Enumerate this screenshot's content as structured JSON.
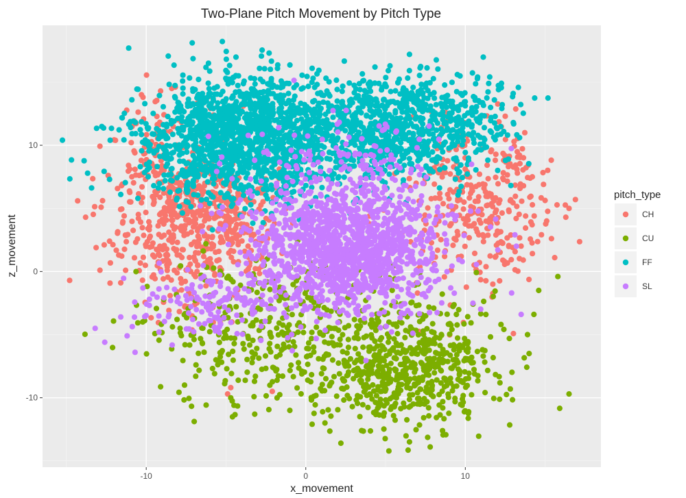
{
  "chart_data": {
    "type": "scatter",
    "title": "Two-Plane Pitch Movement by Pitch Type",
    "xlabel": "x_movement",
    "ylabel": "z_movement",
    "xlim": [
      -16.5,
      18.5
    ],
    "ylim": [
      -15.5,
      19.5
    ],
    "xticks": [
      -10,
      0,
      10
    ],
    "yticks": [
      -10,
      0,
      10
    ],
    "grid": true,
    "legend": {
      "title": "pitch_type",
      "placement": "right"
    },
    "series": [
      {
        "name": "CH",
        "color": "#f8766d",
        "clusters": [
          {
            "cx": -7.0,
            "cy": 4.0,
            "sx": 2.4,
            "sy": 3.0,
            "n": 650
          },
          {
            "cx": 10.8,
            "cy": 5.0,
            "sx": 2.2,
            "sy": 3.2,
            "n": 340
          },
          {
            "cx": -9.5,
            "cy": 10.0,
            "sx": 1.2,
            "sy": 2.5,
            "n": 60
          }
        ],
        "values": [
          [
            -14.8,
            -0.7
          ],
          [
            -14.3,
            5.6
          ],
          [
            -13.8,
            4.3
          ],
          [
            -12.9,
            0.1
          ],
          [
            -12.3,
            2.4
          ],
          [
            -11.6,
            -0.9
          ],
          [
            -10.9,
            7.5
          ],
          [
            -10.2,
            13.8
          ],
          [
            -9.1,
            14.3
          ],
          [
            -8.4,
            14.5
          ],
          [
            -4.9,
            -9.7
          ],
          [
            -4.7,
            -9.2
          ],
          [
            -2.1,
            -9.5
          ],
          [
            14.9,
            6.9
          ],
          [
            15.1,
            4.0
          ],
          [
            15.4,
            2.6
          ],
          [
            15.6,
            1.1
          ],
          [
            16.3,
            4.3
          ],
          [
            16.9,
            5.7
          ],
          [
            16.5,
            5.0
          ],
          [
            14.2,
            7.5
          ],
          [
            12.5,
            12.3
          ]
        ]
      },
      {
        "name": "CU",
        "color": "#7cae00",
        "clusters": [
          {
            "cx": 6.2,
            "cy": -7.5,
            "sx": 2.8,
            "sy": 2.6,
            "n": 650
          },
          {
            "cx": -2.5,
            "cy": -4.6,
            "sx": 3.5,
            "sy": 2.8,
            "n": 330
          }
        ],
        "values": [
          [
            16.5,
            -9.7
          ],
          [
            15.8,
            -0.4
          ],
          [
            14.6,
            -1.5
          ],
          [
            14.3,
            -3.4
          ],
          [
            13.9,
            -5.0
          ],
          [
            0.4,
            -12.1
          ],
          [
            1.2,
            -12.0
          ],
          [
            2.2,
            -13.6
          ],
          [
            6.5,
            -13.5
          ],
          [
            7.8,
            -13.9
          ],
          [
            -4.5,
            -10.6
          ],
          [
            -3.2,
            -11.3
          ],
          [
            -1.0,
            -11.0
          ],
          [
            3.5,
            -12.6
          ],
          [
            9.8,
            -10.6
          ],
          [
            14.0,
            -6.5
          ],
          [
            -7.6,
            -9.0
          ],
          [
            -6.9,
            -8.3
          ]
        ]
      },
      {
        "name": "FF",
        "color": "#00bfc4",
        "clusters": [
          {
            "cx": -3.6,
            "cy": 10.5,
            "sx": 3.3,
            "sy": 2.4,
            "n": 1500
          },
          {
            "cx": 5.8,
            "cy": 11.4,
            "sx": 3.3,
            "sy": 2.0,
            "n": 850
          }
        ],
        "values": [
          [
            -11.1,
            17.7
          ],
          [
            -6.1,
            16.5
          ],
          [
            -2.3,
            17.3
          ],
          [
            0.4,
            16.1
          ],
          [
            6.5,
            17.2
          ],
          [
            9.5,
            15.6
          ],
          [
            13.0,
            14.1
          ],
          [
            -12.3,
            7.3
          ],
          [
            13.4,
            10.6
          ],
          [
            12.7,
            8.9
          ],
          [
            -10.9,
            13.6
          ],
          [
            -11.6,
            6.1
          ]
        ]
      },
      {
        "name": "SL",
        "color": "#c77cff",
        "clusters": [
          {
            "cx": 2.6,
            "cy": 1.8,
            "sx": 3.0,
            "sy": 2.6,
            "n": 1350
          },
          {
            "cx": -5.5,
            "cy": -2.5,
            "sx": 2.3,
            "sy": 1.3,
            "n": 150
          },
          {
            "cx": 2.5,
            "cy": 8.5,
            "sx": 3.0,
            "sy": 2.0,
            "n": 150
          }
        ],
        "values": [
          [
            -13.2,
            -4.5
          ],
          [
            -12.6,
            -5.6
          ],
          [
            -11.2,
            -5.1
          ],
          [
            -10.7,
            -6.4
          ],
          [
            -11.6,
            -3.6
          ],
          [
            -9.8,
            -2.2
          ],
          [
            -9.2,
            -4.8
          ],
          [
            13.5,
            -3.4
          ],
          [
            12.9,
            -1.7
          ],
          [
            13.2,
            2.0
          ],
          [
            -6.6,
            5.2
          ],
          [
            -5.9,
            4.6
          ]
        ]
      }
    ]
  }
}
